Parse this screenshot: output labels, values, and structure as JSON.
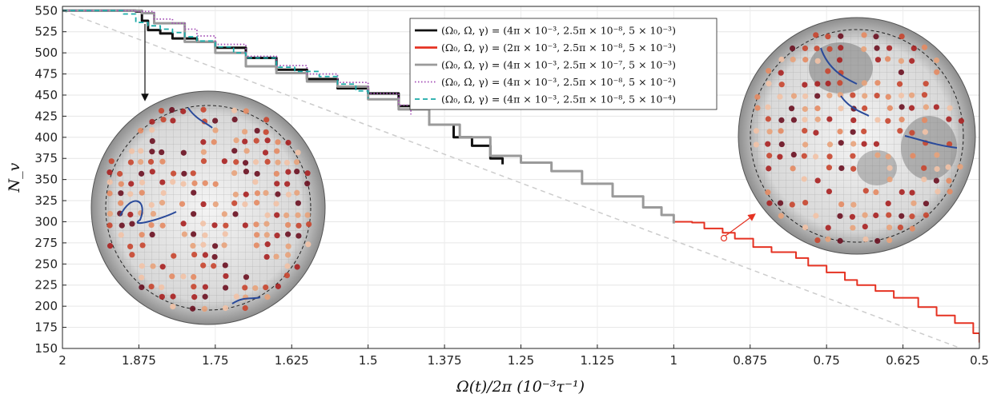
{
  "chart_data": {
    "type": "line",
    "xlabel": "Ω(t)/2π (10⁻³τ⁻¹)",
    "ylabel": "N_v",
    "xlim": [
      2,
      0.5
    ],
    "ylim": [
      150,
      555
    ],
    "x_reversed": true,
    "grid": true,
    "legend_position": "top-center",
    "x_ticks": [
      "2",
      "1.875",
      "1.75",
      "1.625",
      "1.5",
      "1.375",
      "1.25",
      "1.125",
      "1",
      "0.875",
      "0.75",
      "0.625",
      "0.5"
    ],
    "x_tick_values": [
      2,
      1.875,
      1.75,
      1.625,
      1.5,
      1.375,
      1.25,
      1.125,
      1,
      0.875,
      0.75,
      0.625,
      0.5
    ],
    "y_ticks": [
      150,
      175,
      200,
      225,
      250,
      275,
      300,
      325,
      350,
      375,
      400,
      425,
      450,
      475,
      500,
      525,
      550
    ],
    "series": [
      {
        "name": "(Ω₀, Ω̇, γ) = (4π × 10⁻³, 2.5π × 10⁻⁸, 5 × 10⁻³)",
        "color": "#111111",
        "style": "solid",
        "x": [
          2,
          1.88,
          1.87,
          1.86,
          1.84,
          1.82,
          1.78,
          1.75,
          1.7,
          1.65,
          1.6,
          1.55,
          1.5,
          1.45,
          1.4,
          1.36,
          1.33,
          1.3,
          1.28
        ],
        "y": [
          550,
          549,
          538,
          527,
          523,
          517,
          513,
          506,
          494,
          480,
          469,
          458,
          452,
          437,
          415,
          400,
          390,
          375,
          368
        ]
      },
      {
        "name": "(Ω₀, Ω̇, γ) = (2π × 10⁻³, 2.5π × 10⁻⁸, 5 × 10⁻³)",
        "color": "#e53222",
        "style": "solid",
        "x": [
          1,
          0.97,
          0.95,
          0.92,
          0.9,
          0.87,
          0.84,
          0.8,
          0.78,
          0.75,
          0.72,
          0.7,
          0.67,
          0.64,
          0.6,
          0.57,
          0.54,
          0.51,
          0.5
        ],
        "y": [
          300,
          299,
          292,
          287,
          280,
          270,
          264,
          257,
          248,
          240,
          231,
          225,
          218,
          210,
          199,
          189,
          180,
          168,
          157
        ]
      },
      {
        "name": "(Ω₀, Ω̇, γ) = (4π × 10⁻³, 2.5π × 10⁻⁷, 5 × 10⁻³)",
        "color": "#9a9a9a",
        "style": "solid",
        "x": [
          2,
          1.87,
          1.85,
          1.8,
          1.75,
          1.7,
          1.65,
          1.6,
          1.55,
          1.5,
          1.45,
          1.4,
          1.35,
          1.3,
          1.25,
          1.2,
          1.15,
          1.1,
          1.05,
          1.02,
          1
        ],
        "y": [
          550,
          547,
          535,
          513,
          500,
          484,
          476,
          466,
          460,
          445,
          433,
          415,
          400,
          378,
          370,
          360,
          345,
          330,
          317,
          308,
          298
        ]
      },
      {
        "name": "(Ω₀, Ω̇, γ) = (4π × 10⁻³, 2.5π × 10⁻⁸, 5 × 10⁻²)",
        "color": "#a24bb5",
        "style": "dotted",
        "x": [
          2,
          1.88,
          1.85,
          1.82,
          1.8,
          1.78,
          1.75,
          1.7,
          1.65,
          1.6,
          1.55,
          1.5,
          1.45,
          1.43
        ],
        "y": [
          550,
          549,
          540,
          535,
          528,
          520,
          510,
          496,
          485,
          475,
          465,
          452,
          438,
          427
        ]
      },
      {
        "name": "(Ω₀, Ω̇, γ) = (4π × 10⁻³, 2.5π × 10⁻⁸, 5 × 10⁻⁴)",
        "color": "#1aaaa8",
        "style": "dashed",
        "x": [
          2,
          1.9,
          1.88,
          1.86,
          1.84,
          1.82,
          1.8,
          1.78,
          1.75,
          1.72,
          1.7,
          1.65,
          1.62,
          1.58,
          1.55,
          1.52,
          1.5
        ],
        "y": [
          550,
          546,
          536,
          532,
          528,
          524,
          519,
          514,
          507,
          500,
          494,
          483,
          478,
          472,
          463,
          455,
          446
        ]
      }
    ],
    "reference_line": {
      "color": "#cccccc",
      "style": "dashed",
      "x": [
        2,
        0.53
      ],
      "y": [
        550,
        150
      ]
    }
  }
}
